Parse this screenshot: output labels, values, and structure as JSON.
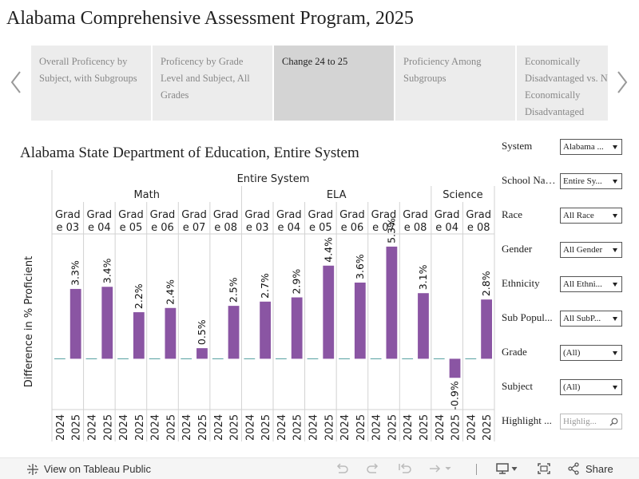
{
  "page_title": "Alabama Comprehensive Assessment Program, 2025",
  "tabs": [
    {
      "label": "Overall Proficency by Subject, with Subgroups",
      "active": false
    },
    {
      "label": "Proficency by Grade Level and Subject, All Grades",
      "active": false
    },
    {
      "label": "Change 24 to 25",
      "active": true
    },
    {
      "label": "Proficiency Among Subgroups",
      "active": false
    },
    {
      "label": "Economically Disadvantaged vs. Not Economically Disadvantaged",
      "active": false
    }
  ],
  "chart_heading": "Alabama State Department of Education, Entire System",
  "filters": [
    {
      "label": "System",
      "value": "Alabama ..."
    },
    {
      "label": "School Name",
      "value": "Entire Sy..."
    },
    {
      "label": "Race",
      "value": "All Race"
    },
    {
      "label": "Gender",
      "value": "All Gender"
    },
    {
      "label": "Ethnicity",
      "value": "All Ethni..."
    },
    {
      "label": "Sub Popul...",
      "value": "All SubP..."
    },
    {
      "label": "Grade",
      "value": "(All)"
    },
    {
      "label": "Subject",
      "value": "(All)"
    }
  ],
  "highlight": {
    "label": "Highlight ...",
    "placeholder": "Highlig..."
  },
  "footer": {
    "view_link": "View on Tableau Public",
    "share_label": "Share"
  },
  "colors": {
    "bar": "#8A55A3",
    "baseline": "#4E9C9C",
    "grid": "#d2d2d2",
    "tab_active": "#d4d4d4",
    "tab": "#ececec"
  },
  "chart_data": {
    "type": "bar",
    "top_header": "Entire System",
    "ylabel": "Difference in % Proficient",
    "years": [
      "2024",
      "2025"
    ],
    "subjects": [
      {
        "name": "Math",
        "grades": [
          {
            "grade": "Grade 03",
            "values": [
              0,
              3.3
            ],
            "labels": [
              "",
              "3.3%"
            ]
          },
          {
            "grade": "Grade 04",
            "values": [
              0,
              3.4
            ],
            "labels": [
              "",
              "3.4%"
            ]
          },
          {
            "grade": "Grade 05",
            "values": [
              0,
              2.2
            ],
            "labels": [
              "",
              "2.2%"
            ]
          },
          {
            "grade": "Grade 06",
            "values": [
              0,
              2.4
            ],
            "labels": [
              "",
              "2.4%"
            ]
          },
          {
            "grade": "Grade 07",
            "values": [
              0,
              0.5
            ],
            "labels": [
              "",
              "0.5%"
            ]
          },
          {
            "grade": "Grade 08",
            "values": [
              0,
              2.5
            ],
            "labels": [
              "",
              "2.5%"
            ]
          }
        ]
      },
      {
        "name": "ELA",
        "grades": [
          {
            "grade": "Grade 03",
            "values": [
              0,
              2.7
            ],
            "labels": [
              "",
              "2.7%"
            ]
          },
          {
            "grade": "Grade 04",
            "values": [
              0,
              2.9
            ],
            "labels": [
              "",
              "2.9%"
            ]
          },
          {
            "grade": "Grade 05",
            "values": [
              0,
              4.4
            ],
            "labels": [
              "",
              "4.4%"
            ]
          },
          {
            "grade": "Grade 06",
            "values": [
              0,
              3.6
            ],
            "labels": [
              "",
              "3.6%"
            ]
          },
          {
            "grade": "Grade 07",
            "values": [
              0,
              5.3
            ],
            "labels": [
              "",
              "5.3%"
            ]
          },
          {
            "grade": "Grade 08",
            "values": [
              0,
              3.1
            ],
            "labels": [
              "",
              "3.1%"
            ]
          }
        ]
      },
      {
        "name": "Science",
        "grades": [
          {
            "grade": "Grade 04",
            "values": [
              0,
              -0.9
            ],
            "labels": [
              "",
              "-0.9%"
            ]
          },
          {
            "grade": "Grade 08",
            "values": [
              0,
              2.8
            ],
            "labels": [
              "",
              "2.8%"
            ]
          }
        ]
      }
    ],
    "ylim": [
      -2.4,
      5.9
    ],
    "grid": true
  }
}
